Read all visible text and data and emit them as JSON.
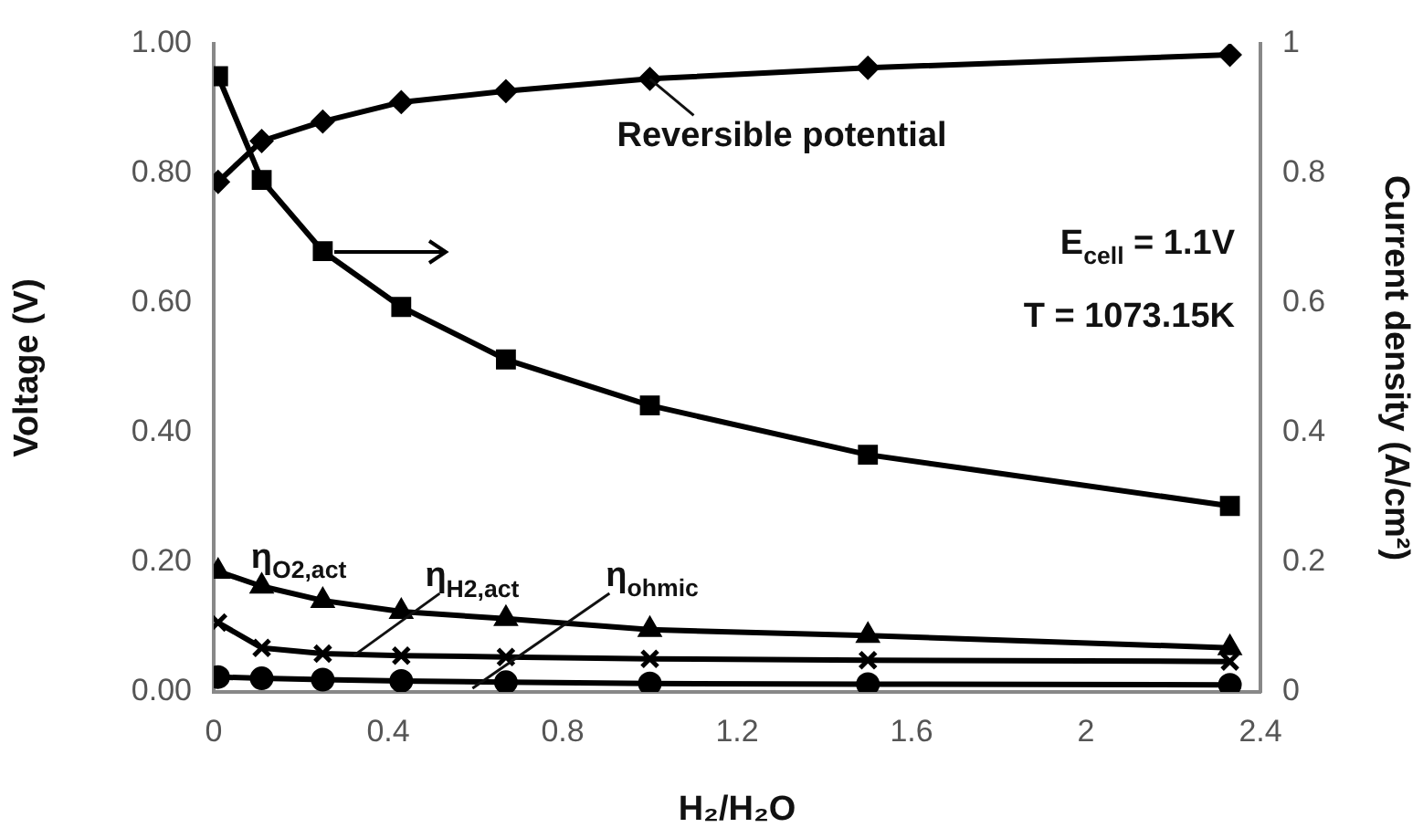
{
  "chart_data": {
    "type": "line",
    "xlabel": "H₂/H₂O",
    "ylabel": "Voltage (V)",
    "y2label": "Current density (A/cm²)",
    "x": [
      0.01,
      0.11,
      0.25,
      0.43,
      0.67,
      1,
      1.5,
      2.33
    ],
    "xlim": [
      0,
      2.4
    ],
    "xticks": [
      0,
      0.4,
      0.8,
      1.2,
      1.6,
      2,
      2.4
    ],
    "ylim": [
      0,
      1
    ],
    "yticks": [
      {
        "value": 0,
        "label": "0.00"
      },
      {
        "value": 0.2,
        "label": "0.20"
      },
      {
        "value": 0.4,
        "label": "0.40"
      },
      {
        "value": 0.6,
        "label": "0.60"
      },
      {
        "value": 0.8,
        "label": "0.80"
      },
      {
        "value": 1,
        "label": "1.00"
      }
    ],
    "y2lim": [
      0,
      1
    ],
    "y2ticks": [
      0,
      0.2,
      0.4,
      0.6,
      0.8,
      1
    ],
    "grid": false,
    "legend": false,
    "line_style": "solid",
    "series": [
      {
        "name": "Reversible potential",
        "color": "#000000",
        "marker": "diamond",
        "values": [
          0.787,
          0.85,
          0.88,
          0.91,
          0.927,
          0.946,
          0.963,
          0.983
        ]
      },
      {
        "color": "#000000",
        "marker": "square",
        "axis": "y2",
        "values": [
          0.95,
          0.79,
          0.68,
          0.594,
          0.513,
          0.442,
          0.366,
          0.287
        ]
      },
      {
        "name": "η$_{O2,act}$",
        "color": "#000000",
        "marker": "triangle",
        "values": [
          0.186,
          0.163,
          0.141,
          0.124,
          0.113,
          0.096,
          0.087,
          0.068
        ]
      },
      {
        "name": "η$_{H2,act}$",
        "color": "#000000",
        "marker": "cross",
        "values": [
          0.107,
          0.068,
          0.059,
          0.056,
          0.054,
          0.051,
          0.049,
          0.047
        ]
      },
      {
        "name": "η$_{ohmic}$",
        "color": "#000000",
        "marker": "circle",
        "values": [
          0.023,
          0.021,
          0.019,
          0.017,
          0.015,
          0.013,
          0.012,
          0.011
        ]
      }
    ],
    "annotations": [
      "E$_{cell}$ = 1.1V",
      "T = 1073.15K"
    ]
  }
}
